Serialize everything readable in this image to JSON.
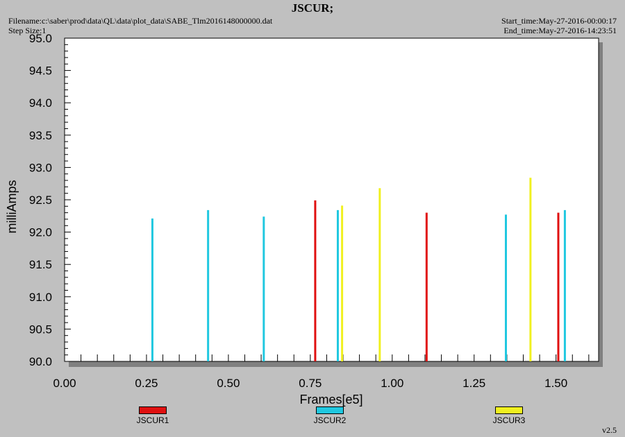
{
  "header": {
    "title": "JSCUR;",
    "filename": "Filename:c:\\saber\\prod\\data\\QL\\data\\plot_data\\SABE_Tlm2016148000000.dat",
    "step_size": "Step Size:1",
    "start_time": "Start_time:May-27-2016-00:00:17",
    "end_time": "End_time:May-27-2016-14:23:51"
  },
  "version": "v2.5",
  "chart_data": {
    "type": "bar",
    "xlabel": "Frames[e5]",
    "ylabel": "milliAmps",
    "xlim": [
      0.0,
      1.63
    ],
    "ylim": [
      90.0,
      95.0
    ],
    "xticks": [
      "0.00",
      "0.25",
      "0.50",
      "0.75",
      "1.00",
      "1.25",
      "1.50"
    ],
    "yticks": [
      "90.0",
      "90.5",
      "91.0",
      "91.5",
      "92.0",
      "92.5",
      "93.0",
      "93.5",
      "94.0",
      "94.5",
      "95.0"
    ],
    "legend_position": "bottom",
    "series": [
      {
        "name": "JSCUR1",
        "color": "#e01010",
        "x": [
          0.765,
          1.105,
          1.507
        ],
        "y": [
          92.49,
          92.3,
          92.3
        ]
      },
      {
        "name": "JSCUR2",
        "color": "#20c8e0",
        "x": [
          0.268,
          0.438,
          0.608,
          0.834,
          1.347,
          1.527
        ],
        "y": [
          92.21,
          92.34,
          92.24,
          92.34,
          92.27,
          92.34
        ]
      },
      {
        "name": "JSCUR3",
        "color": "#f0f020",
        "x": [
          0.847,
          0.962,
          1.422
        ],
        "y": [
          92.41,
          92.68,
          92.84
        ]
      }
    ]
  }
}
